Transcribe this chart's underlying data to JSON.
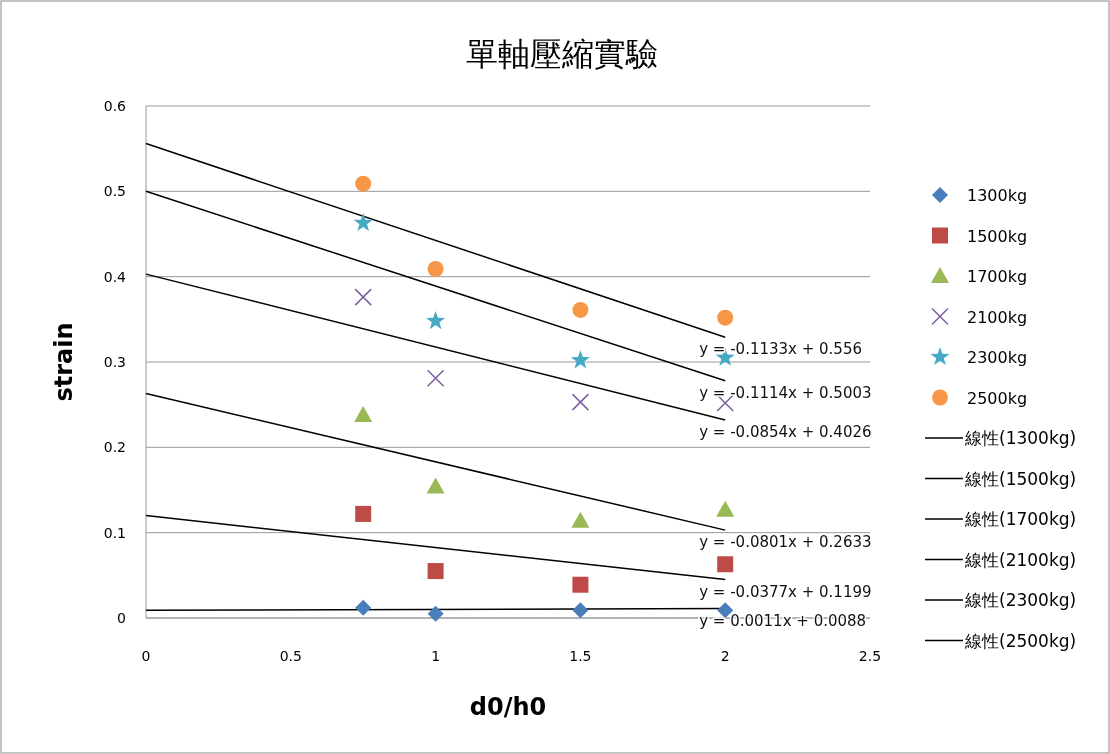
{
  "chart_data": {
    "type": "scatter",
    "title": "單軸壓縮實驗",
    "xlabel": "d0/h0",
    "ylabel": "strain",
    "xlim": [
      0,
      2.5
    ],
    "xticks": [
      0,
      0.5,
      1,
      1.5,
      2,
      2.5
    ],
    "ylim": [
      0,
      0.6
    ],
    "yticks": [
      0,
      0.1,
      0.2,
      0.3,
      0.4,
      0.5,
      0.6
    ],
    "grid": "y",
    "legend": "right",
    "series": [
      {
        "name": "1300kg",
        "color": "#4a7ebb",
        "marker": "diamond",
        "x": [
          0.75,
          1,
          1.5,
          2
        ],
        "values": [
          0.012,
          0.005,
          0.009,
          0.009
        ]
      },
      {
        "name": "1500kg",
        "color": "#be4b48",
        "marker": "square",
        "x": [
          0.75,
          1,
          1.5,
          2
        ],
        "values": [
          0.122,
          0.055,
          0.039,
          0.063
        ]
      },
      {
        "name": "1700kg",
        "color": "#98b954",
        "marker": "triangle",
        "x": [
          0.75,
          1,
          1.5,
          2
        ],
        "values": [
          0.238,
          0.154,
          0.114,
          0.127
        ]
      },
      {
        "name": "2100kg",
        "color": "#7d60a0",
        "marker": "cross",
        "x": [
          0.75,
          1,
          1.5,
          2
        ],
        "values": [
          0.376,
          0.281,
          0.253,
          0.252
        ]
      },
      {
        "name": "2300kg",
        "color": "#46aac5",
        "marker": "star",
        "x": [
          0.75,
          1,
          1.5,
          2
        ],
        "values": [
          0.463,
          0.348,
          0.302,
          0.305
        ]
      },
      {
        "name": "2500kg",
        "color": "#f79646",
        "marker": "circle",
        "x": [
          0.75,
          1,
          1.5,
          2
        ],
        "values": [
          0.509,
          0.409,
          0.361,
          0.352
        ]
      },
      {
        "name": "線性(1300kg)",
        "type": "line",
        "color": "#000000",
        "marker": "none",
        "x": [
          0,
          2
        ],
        "values": [
          0.009,
          0.011
        ]
      },
      {
        "name": "線性(1500kg)",
        "type": "line",
        "color": "#000000",
        "marker": "none",
        "x": [
          0,
          2
        ],
        "values": [
          0.12,
          0.045
        ]
      },
      {
        "name": "線性(1700kg)",
        "type": "line",
        "color": "#000000",
        "marker": "none",
        "x": [
          0,
          2
        ],
        "values": [
          0.263,
          0.103
        ]
      },
      {
        "name": "線性(2100kg)",
        "type": "line",
        "color": "#000000",
        "marker": "none",
        "x": [
          0,
          2
        ],
        "values": [
          0.403,
          0.232
        ]
      },
      {
        "name": "線性(2300kg)",
        "type": "line",
        "color": "#000000",
        "marker": "none",
        "x": [
          0,
          2
        ],
        "values": [
          0.5,
          0.278
        ]
      },
      {
        "name": "線性(2500kg)",
        "type": "line",
        "color": "#000000",
        "marker": "none",
        "x": [
          0,
          2
        ],
        "values": [
          0.556,
          0.329
        ]
      }
    ],
    "annotations": [
      "y = 0.0011x + 0.0088",
      "y = -0.0377x + 0.1199",
      "y = -0.0801x + 0.2633",
      "y = -0.0854x + 0.4026",
      "y = -0.1114x + 0.5003",
      "y = -0.1133x + 0.556"
    ]
  }
}
